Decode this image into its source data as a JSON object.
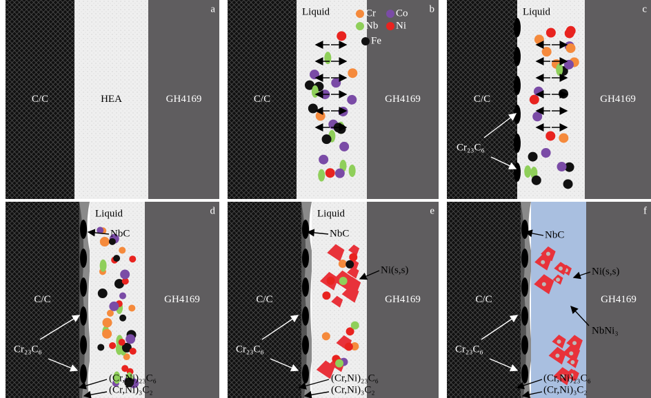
{
  "panels": [
    {
      "letter": "a",
      "left": "C/C",
      "middle": "HEA",
      "right": "GH4169"
    },
    {
      "letter": "b",
      "left": "C/C",
      "right": "GH4169",
      "top": "Liquid",
      "legend": [
        "Cr",
        "Co",
        "Nb",
        "Ni",
        "Fe"
      ]
    },
    {
      "letter": "c",
      "left": "C/C",
      "right": "GH4169",
      "top": "Liquid",
      "annotations": [
        "Cr₂₃C₆"
      ]
    },
    {
      "letter": "d",
      "left": "C/C",
      "right": "GH4169",
      "top": "Liquid",
      "annotations": [
        "NbC",
        "Cr₂₃C₆",
        "(Cr,Ni)₂₃C₆",
        "(Cr,Ni)₃C₂"
      ]
    },
    {
      "letter": "e",
      "left": "C/C",
      "right": "GH4169",
      "top": "Liquid",
      "annotations": [
        "NbC",
        "Ni(s,s)",
        "Cr₂₃C₆",
        "(Cr,Ni)₂₃C₆",
        "(Cr,Ni)₃C₂"
      ]
    },
    {
      "letter": "f",
      "left": "C/C",
      "right": "GH4169",
      "annotations": [
        "NbC",
        "Ni(s,s)",
        "NbNi₃",
        "Cr₂₃C₆",
        "(Cr,Ni)₂₃C₆",
        "(Cr,Ni)₃C₂"
      ]
    }
  ]
}
